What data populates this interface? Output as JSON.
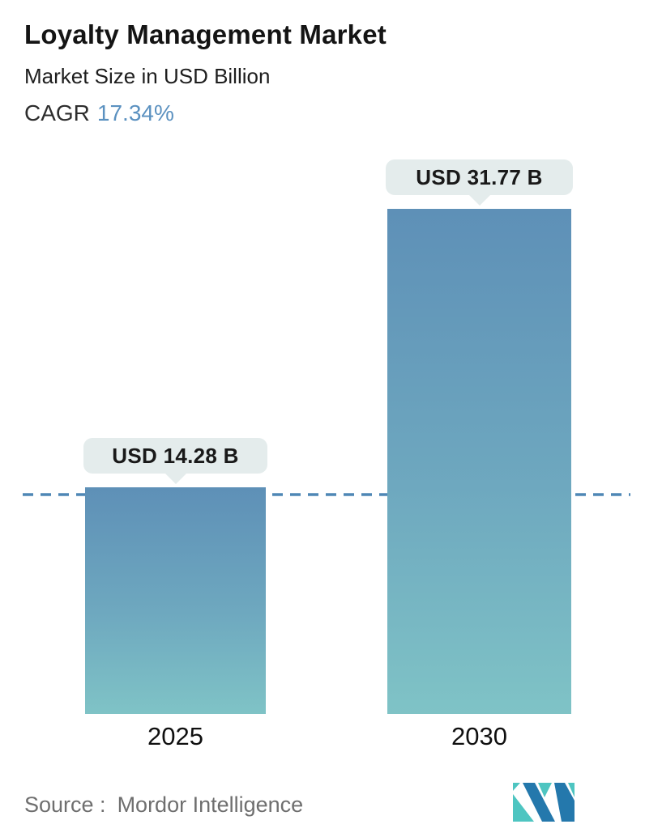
{
  "header": {
    "title": "Loyalty Management Market",
    "subtitle": "Market Size in USD Billion",
    "cagr_label": "CAGR",
    "cagr_value": "17.34%"
  },
  "chart_data": {
    "type": "bar",
    "title": "Loyalty Management Market",
    "subtitle": "Market Size in USD Billion",
    "cagr": "17.34%",
    "unit": "USD Billion",
    "categories": [
      "2025",
      "2030"
    ],
    "values": [
      14.28,
      31.77
    ],
    "bar_labels": [
      "USD 14.28 B",
      "USD 31.77 B"
    ],
    "ylim": [
      0,
      31.77
    ],
    "grid": false,
    "legend": false,
    "reference_line": {
      "value": 14.28,
      "style": "dashed"
    },
    "bar_gradient": {
      "top": "#5E90B7",
      "bottom": "#7FC3C6"
    }
  },
  "footer": {
    "source_label": "Source :",
    "source_value": "Mordor Intelligence",
    "logo_name": "mordor-intelligence-logo"
  },
  "colors": {
    "accent_blue": "#5B91C0",
    "bar_top": "#5E90B7",
    "bar_bottom": "#7FC3C6",
    "dashed_line": "#4F87B5",
    "bubble_bg": "#E4ECEC",
    "text_dark": "#141414",
    "source_gray": "#6F6F6F",
    "logo_blue": "#2478AC",
    "logo_teal": "#4EC5C1"
  }
}
